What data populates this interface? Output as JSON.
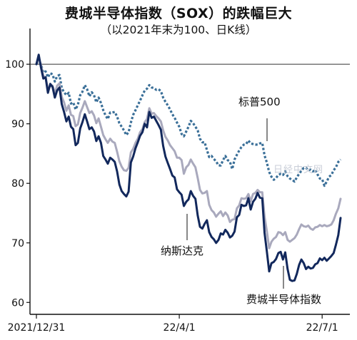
{
  "chart_data": {
    "type": "line",
    "title": "费城半导体指数（SOX）的跌幅巨大",
    "subtitle": "（以2021年末为100、日K线）",
    "ylim": [
      58,
      106
    ],
    "yticks": [
      60,
      70,
      80,
      90,
      100
    ],
    "reference_line": 100,
    "n_points": 133,
    "x_ticks": [
      {
        "index": 0,
        "label": "2021/12/31"
      },
      {
        "index": 62,
        "label": "22/4/1"
      },
      {
        "index": 124,
        "label": "22/7/1"
      }
    ],
    "series": [
      {
        "name": "标普500",
        "style": "dotted",
        "color": "#3a6f98",
        "values": [
          100,
          100.8,
          99.9,
          98.6,
          98.8,
          97.8,
          98.5,
          98.3,
          97.1,
          98.0,
          98.2,
          96.0,
          95.3,
          94.8,
          95.2,
          93.4,
          93.6,
          92.4,
          93.2,
          94.8,
          95.4,
          96.5,
          95.8,
          94.6,
          95.3,
          94.8,
          93.6,
          94.4,
          93.5,
          92.3,
          91.4,
          90.8,
          91.9,
          91.9,
          92.0,
          91.2,
          90.1,
          89.5,
          88.9,
          88.1,
          88.6,
          90.2,
          91.5,
          92.3,
          93.1,
          93.9,
          94.8,
          95.6,
          95.9,
          96.5,
          96.1,
          96.0,
          95.7,
          95.8,
          95.5,
          94.4,
          93.7,
          93.1,
          92.4,
          91.6,
          91.0,
          90.2,
          89.5,
          88.3,
          87.9,
          88.7,
          89.5,
          90.5,
          90.1,
          89.5,
          88.9,
          87.5,
          86.9,
          86.9,
          85.6,
          84.4,
          84.6,
          84.1,
          83.7,
          83.0,
          83.0,
          83.9,
          84.6,
          83.9,
          83.6,
          82.4,
          84.0,
          84.8,
          85.5,
          86.1,
          86.5,
          86.6,
          87.2,
          86.7,
          86.6,
          86.5,
          86.5,
          86.7,
          86.8,
          84.7,
          83.5,
          81.9,
          81.1,
          80.6,
          80.9,
          81.4,
          81.6,
          81.4,
          82.0,
          81.2,
          80.8,
          80.6,
          80.3,
          81.0,
          81.6,
          82.1,
          82.6,
          82.6,
          82.2,
          82.3,
          82.0,
          82.3,
          81.5,
          80.8,
          80.7,
          79.6,
          80.3,
          81.1,
          81.4,
          82.2,
          82.7,
          83.6,
          84.0
        ]
      },
      {
        "name": "纳斯达克",
        "style": "solid",
        "color": "#a9a9bd",
        "values": [
          100,
          101.2,
          99.8,
          98.0,
          97.8,
          95.8,
          96.3,
          96.4,
          95.1,
          96.4,
          96.8,
          94.5,
          93.6,
          92.2,
          93.1,
          91.5,
          91.3,
          89.6,
          89.9,
          91.8,
          92.7,
          93.8,
          92.8,
          91.8,
          92.1,
          91.4,
          90.1,
          90.9,
          89.5,
          88.1,
          87.4,
          86.8,
          87.5,
          87.0,
          86.8,
          85.3,
          83.7,
          82.8,
          82.2,
          82.1,
          82.6,
          85.2,
          85.8,
          86.8,
          87.5,
          88.6,
          89.1,
          90.3,
          90.8,
          92.6,
          91.7,
          91.8,
          91.3,
          90.9,
          90.4,
          88.9,
          87.8,
          87.2,
          86.4,
          85.9,
          85.4,
          84.3,
          84.3,
          83.9,
          81.6,
          82.7,
          83.1,
          84.0,
          83.3,
          82.7,
          80.9,
          78.9,
          78.3,
          78.4,
          78.7,
          76.4,
          75.5,
          75.1,
          74.4,
          74.9,
          75.3,
          74.5,
          75.1,
          74.6,
          73.5,
          73.9,
          74.0,
          75.8,
          76.3,
          77.5,
          77.4,
          77.5,
          78.2,
          77.0,
          78.2,
          78.4,
          78.9,
          78.5,
          78.5,
          74.4,
          72.0,
          69.1,
          70.2,
          70.7,
          71.0,
          71.8,
          71.7,
          71.3,
          71.8,
          70.5,
          70.2,
          70.5,
          70.8,
          71.4,
          72.3,
          73.1,
          72.8,
          72.7,
          72.9,
          72.4,
          72.2,
          72.6,
          72.7,
          73.0,
          72.8,
          73.0,
          72.8,
          72.9,
          73.1,
          73.8,
          74.9,
          75.8,
          77.4
        ]
      },
      {
        "name": "费城半导体指数",
        "style": "solid",
        "color": "#12285c",
        "values": [
          100,
          101.6,
          99.4,
          97.6,
          97.8,
          95.2,
          96.7,
          96.2,
          94.4,
          95.6,
          96.1,
          93.3,
          92.0,
          90.4,
          91.2,
          89.5,
          89.1,
          86.4,
          86.8,
          89.2,
          90.3,
          91.6,
          90.4,
          89.1,
          89.4,
          88.7,
          87.1,
          87.9,
          86.8,
          84.6,
          84.0,
          83.3,
          84.3,
          84.0,
          83.6,
          82.0,
          79.8,
          78.7,
          78.2,
          77.8,
          78.6,
          83.5,
          84.5,
          85.9,
          86.9,
          88.0,
          88.6,
          90.0,
          89.4,
          92.0,
          91.0,
          91.2,
          90.5,
          89.8,
          89.0,
          86.3,
          84.5,
          83.4,
          82.4,
          81.3,
          81.0,
          79.0,
          78.5,
          78.1,
          76.2,
          76.9,
          77.3,
          78.7,
          77.9,
          77.4,
          74.6,
          72.7,
          72.4,
          73.2,
          73.8,
          71.8,
          71.0,
          70.6,
          70.0,
          70.5,
          71.6,
          71.4,
          72.2,
          71.7,
          70.9,
          71.2,
          71.9,
          74.3,
          74.7,
          76.4,
          76.2,
          76.3,
          77.5,
          75.6,
          76.9,
          77.4,
          78.4,
          77.6,
          77.5,
          71.7,
          68.6,
          65.2,
          66.6,
          66.8,
          67.3,
          68.3,
          68.5,
          67.2,
          68.4,
          65.6,
          63.8,
          63.6,
          63.7,
          64.8,
          66.3,
          67.2,
          66.6,
          65.6,
          66.0,
          65.7,
          65.8,
          66.4,
          66.6,
          67.4,
          67.1,
          67.5,
          67.0,
          67.4,
          67.8,
          68.3,
          69.7,
          71.3,
          74.2
        ]
      }
    ],
    "annotations": [
      {
        "series": "标普500",
        "text": "标普500",
        "ref_index": 105
      },
      {
        "series": "纳斯达克",
        "text": "纳斯达克",
        "ref_index": 65
      },
      {
        "series": "费城半导体指数",
        "text": "费城半导体指数",
        "ref_index": 113
      }
    ]
  },
  "watermark": "日经中文网"
}
